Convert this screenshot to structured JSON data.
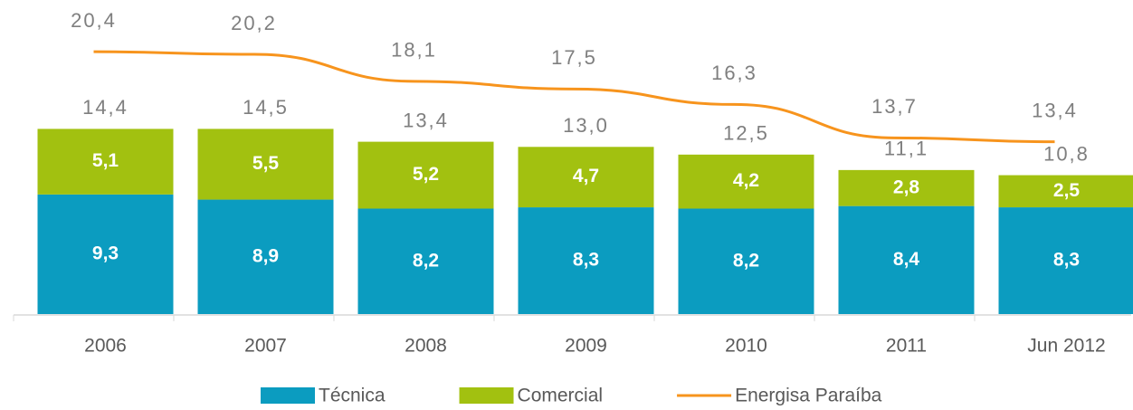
{
  "chart_data": {
    "type": "stacked_bar_line",
    "categories": [
      "2006",
      "2007",
      "2008",
      "2009",
      "2010",
      "2011",
      "Jun 2012"
    ],
    "series": [
      {
        "name": "Técnica",
        "color": "#0b9cc0",
        "values": [
          9.3,
          8.9,
          8.2,
          8.3,
          8.2,
          8.4,
          8.3
        ],
        "value_labels": [
          "9,3",
          "8,9",
          "8,2",
          "8,3",
          "8,2",
          "8,4",
          "8,3"
        ]
      },
      {
        "name": "Comercial",
        "color": "#a2c110",
        "values": [
          5.1,
          5.5,
          5.2,
          4.7,
          4.2,
          2.8,
          2.5
        ],
        "value_labels": [
          "5,1",
          "5,5",
          "5,2",
          "4,7",
          "4,2",
          "2,8",
          "2,5"
        ]
      },
      {
        "name": "Energisa Paraíba",
        "type": "line",
        "color": "#f7941d",
        "values": [
          20.4,
          20.2,
          18.1,
          17.5,
          16.3,
          13.7,
          13.4
        ],
        "value_labels": [
          "20,4",
          "20,2",
          "18,1",
          "17,5",
          "16,3",
          "13,7",
          "13,4"
        ]
      }
    ],
    "totals": [
      14.4,
      14.5,
      13.4,
      13.0,
      12.5,
      11.1,
      10.8
    ],
    "total_labels": [
      "14,4",
      "14,5",
      "13,4",
      "13,0",
      "12,5",
      "11,1",
      "10,8"
    ],
    "ylim": [
      0,
      24
    ],
    "legend": "bottom"
  }
}
